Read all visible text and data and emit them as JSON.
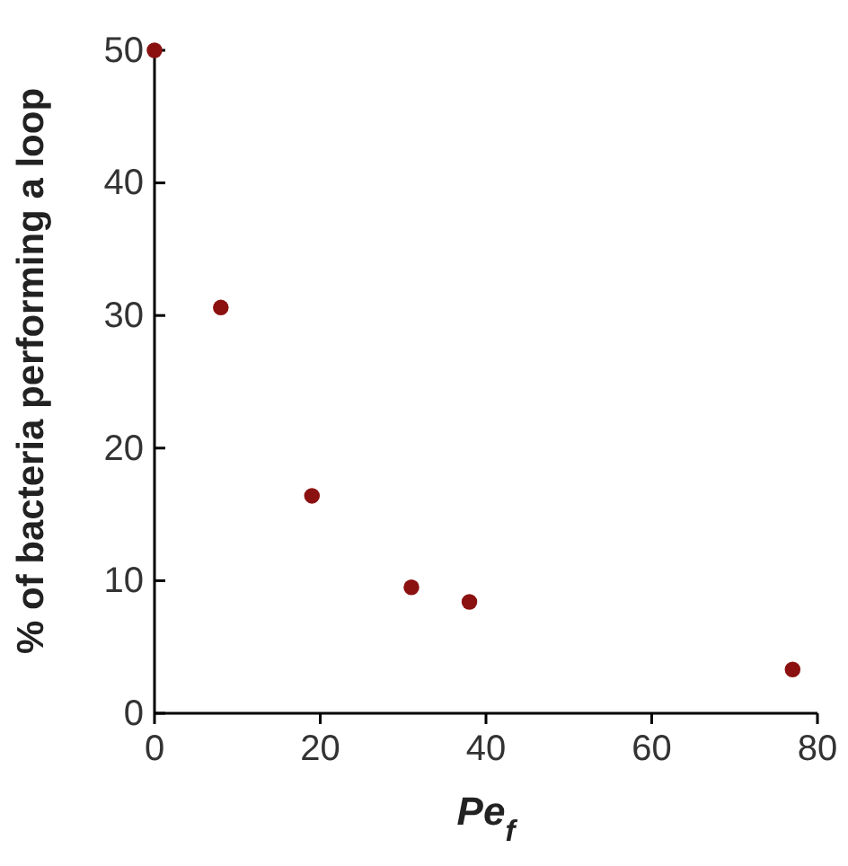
{
  "chart_data": {
    "type": "scatter",
    "xlabel": "Pe$_{f}$",
    "ylabel": "% of bacteria performing a loop",
    "x": [
      0,
      8,
      19,
      31,
      38,
      77
    ],
    "series": [
      {
        "color": "#8b1010",
        "values": [
          50,
          30.6,
          16.4,
          9.5,
          8.4,
          3.3
        ]
      }
    ],
    "xlim": [
      0,
      80
    ],
    "xticks": [
      0,
      20,
      40,
      60,
      80
    ],
    "ylim": [
      0,
      50
    ],
    "yticks": [
      0,
      10,
      20,
      30,
      40,
      50
    ],
    "marker": "circle",
    "grid": false
  }
}
